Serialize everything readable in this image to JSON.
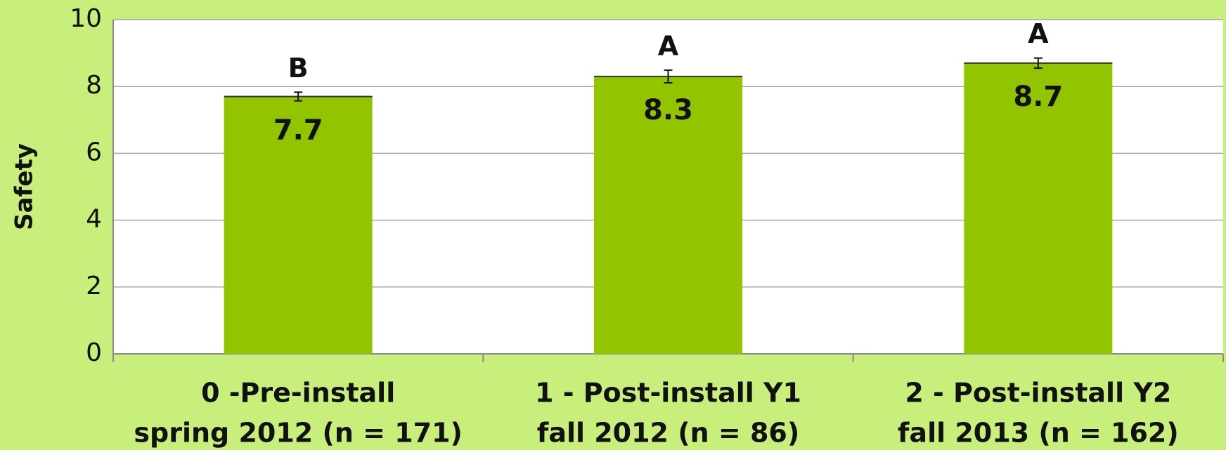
{
  "chart_data": {
    "type": "bar",
    "ylabel": "Safety",
    "categories": [
      [
        "0 -Pre-install",
        "spring 2012 (n = 171)"
      ],
      [
        "1 - Post-install Y1",
        "fall 2012 (n = 86)"
      ],
      [
        "2 - Post-install Y2",
        "fall 2013 (n = 162)"
      ]
    ],
    "values": [
      7.7,
      8.3,
      8.7
    ],
    "errors": [
      0.13,
      0.19,
      0.15
    ],
    "annotations": [
      "B",
      "A",
      "A"
    ],
    "color": "#92c500",
    "ylim": [
      0,
      10
    ],
    "yticks": [
      0,
      2,
      4,
      6,
      8,
      10
    ],
    "grid": true
  }
}
